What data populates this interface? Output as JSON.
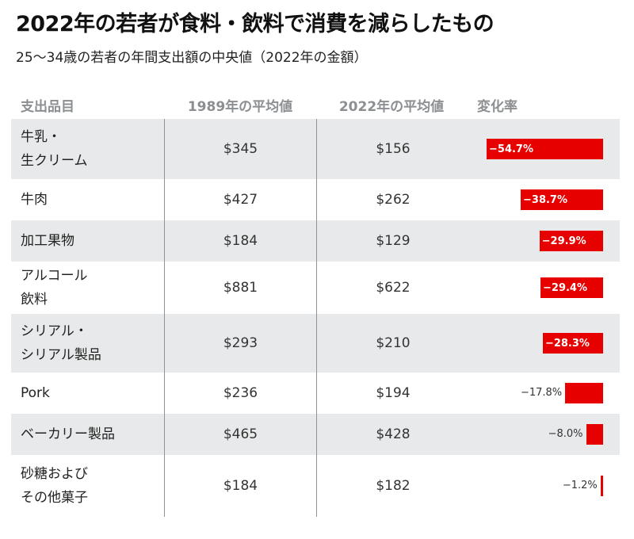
{
  "title": "2022年の若者が食料・飲料で消費を減らしたもの",
  "subtitle": "25～34歳の若者の年間支出額の中央値（2022年の金額）",
  "colors": {
    "bar": "#e60000",
    "shade": "#e8e9ea"
  },
  "chart_data": {
    "type": "table",
    "columns": [
      "支出品目",
      "1989年の平均値",
      "2022年の平均値",
      "変化率"
    ],
    "rows": [
      {
        "item": "牛乳・\n生クリーム",
        "v1989": "$345",
        "v2022": "$156",
        "change": -54.7,
        "change_label": "−54.7%"
      },
      {
        "item": "牛肉",
        "v1989": "$427",
        "v2022": "$262",
        "change": -38.7,
        "change_label": "−38.7%"
      },
      {
        "item": "加工果物",
        "v1989": "$184",
        "v2022": "$129",
        "change": -29.9,
        "change_label": "−29.9%"
      },
      {
        "item": "アルコール\n飲料",
        "v1989": "$881",
        "v2022": "$622",
        "change": -29.4,
        "change_label": "−29.4%"
      },
      {
        "item": "シリアル・\nシリアル製品",
        "v1989": "$293",
        "v2022": "$210",
        "change": -28.3,
        "change_label": "−28.3%"
      },
      {
        "item": "Pork",
        "v1989": "$236",
        "v2022": "$194",
        "change": -17.8,
        "change_label": "−17.8%"
      },
      {
        "item": "ベーカリー製品",
        "v1989": "$465",
        "v2022": "$428",
        "change": -8.0,
        "change_label": "−8.0%"
      },
      {
        "item": "砂糖および\nその他菓子",
        "v1989": "$184",
        "v2022": "$182",
        "change": -1.2,
        "change_label": "−1.2%"
      }
    ]
  }
}
